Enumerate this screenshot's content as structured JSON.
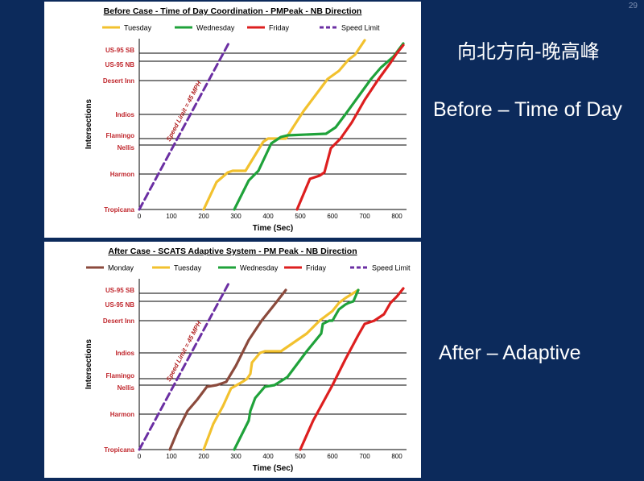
{
  "slide_number": "29",
  "side_labels": {
    "chinese_title": "向北方向-晚高峰",
    "before": "Before – Time of Day",
    "after": "After – Adaptive"
  },
  "colors": {
    "Monday": "#8b4a3c",
    "Tuesday": "#f2c12e",
    "Wednesday": "#1fa23a",
    "Friday": "#dd1f1f",
    "Speed Limit": "#6b2fa3",
    "label_red": "#c0272d"
  },
  "chart_data": [
    {
      "type": "line",
      "title": "Before Case - Time of Day Coordination - PMPeak - NB Direction",
      "xlabel": "Time (Sec)",
      "ylabel": "Intersections",
      "xlim": [
        0,
        830
      ],
      "x_ticks": [
        0,
        100,
        200,
        300,
        400,
        500,
        600,
        700,
        800
      ],
      "ylim": [
        0,
        5.3
      ],
      "intersections": [
        {
          "name": "Tropicana",
          "pos": 0
        },
        {
          "name": "Harmon",
          "pos": 1.1
        },
        {
          "name": "Nellis",
          "pos": 2.0
        },
        {
          "name": "Flamingo",
          "pos": 2.2
        },
        {
          "name": "Indios",
          "pos": 2.95
        },
        {
          "name": "Desert Inn",
          "pos": 4.0
        },
        {
          "name": "US-95 NB",
          "pos": 4.6
        },
        {
          "name": "US-95 SB",
          "pos": 4.85
        }
      ],
      "series": [
        {
          "name": "Tuesday",
          "x": [
            200,
            240,
            275,
            290,
            330,
            385,
            400,
            455,
            510,
            585,
            620,
            650,
            670,
            700
          ],
          "y": [
            0,
            0.85,
            1.15,
            1.2,
            1.2,
            2.1,
            2.2,
            2.2,
            3.05,
            4.05,
            4.3,
            4.65,
            4.8,
            5.25
          ]
        },
        {
          "name": "Wednesday",
          "x": [
            295,
            340,
            370,
            410,
            440,
            460,
            580,
            610,
            640,
            680,
            720,
            750,
            790,
            820
          ],
          "y": [
            0,
            0.9,
            1.2,
            2.05,
            2.25,
            2.3,
            2.35,
            2.55,
            2.95,
            3.5,
            4.05,
            4.4,
            4.75,
            5.15
          ]
        },
        {
          "name": "Friday",
          "x": [
            490,
            530,
            560,
            575,
            595,
            625,
            660,
            700,
            740,
            780,
            800,
            820
          ],
          "y": [
            0,
            0.95,
            1.05,
            1.15,
            1.9,
            2.2,
            2.7,
            3.4,
            4.0,
            4.55,
            4.85,
            5.1
          ]
        },
        {
          "name": "Speed Limit",
          "x": [
            0,
            280
          ],
          "y": [
            0,
            5.2
          ]
        }
      ],
      "annotation": "Speed Limit = 45 MPH"
    },
    {
      "type": "line",
      "title": "After Case - SCATS  Adaptive  System - PM Peak - NB Direction",
      "xlabel": "Time (Sec)",
      "ylabel": "Intersections",
      "xlim": [
        0,
        830
      ],
      "x_ticks": [
        0,
        100,
        200,
        300,
        400,
        500,
        600,
        700,
        800
      ],
      "ylim": [
        0,
        5.3
      ],
      "intersections": [
        {
          "name": "Tropicana",
          "pos": 0
        },
        {
          "name": "Harmon",
          "pos": 1.1
        },
        {
          "name": "Nellis",
          "pos": 2.0
        },
        {
          "name": "Flamingo",
          "pos": 2.2
        },
        {
          "name": "Indios",
          "pos": 3.0
        },
        {
          "name": "Desert Inn",
          "pos": 4.0
        },
        {
          "name": "US-95 NB",
          "pos": 4.6
        },
        {
          "name": "US-95 SB",
          "pos": 4.85
        }
      ],
      "series": [
        {
          "name": "Monday",
          "x": [
            95,
            120,
            150,
            180,
            210,
            240,
            270,
            300,
            340,
            380,
            420,
            455
          ],
          "y": [
            0,
            0.6,
            1.2,
            1.55,
            1.95,
            2.0,
            2.1,
            2.6,
            3.4,
            4.0,
            4.5,
            4.95
          ]
        },
        {
          "name": "Tuesday",
          "x": [
            200,
            230,
            260,
            285,
            320,
            335,
            345,
            350,
            375,
            390,
            410,
            440,
            520,
            560,
            600,
            620,
            640,
            680
          ],
          "y": [
            0,
            0.8,
            1.35,
            1.9,
            2.1,
            2.2,
            2.35,
            2.7,
            3.0,
            3.05,
            3.05,
            3.05,
            3.6,
            4.0,
            4.3,
            4.55,
            4.7,
            4.95
          ]
        },
        {
          "name": "Wednesday",
          "x": [
            295,
            320,
            340,
            345,
            360,
            390,
            420,
            460,
            520,
            565,
            570,
            590,
            600,
            620,
            640,
            650,
            665,
            680
          ],
          "y": [
            0,
            0.5,
            0.9,
            1.2,
            1.6,
            1.95,
            2.0,
            2.25,
            3.05,
            3.6,
            3.9,
            4.0,
            4.0,
            4.35,
            4.5,
            4.55,
            4.6,
            4.95
          ]
        },
        {
          "name": "Friday",
          "x": [
            500,
            540,
            570,
            600,
            640,
            680,
            700,
            730,
            760,
            780,
            800,
            820
          ],
          "y": [
            0,
            0.9,
            1.45,
            2.0,
            2.8,
            3.55,
            3.9,
            4.0,
            4.2,
            4.55,
            4.75,
            5.0
          ]
        },
        {
          "name": "Speed Limit",
          "x": [
            0,
            280
          ],
          "y": [
            0,
            5.2
          ]
        }
      ],
      "annotation": "Speed Limit = 45 MPH"
    }
  ]
}
